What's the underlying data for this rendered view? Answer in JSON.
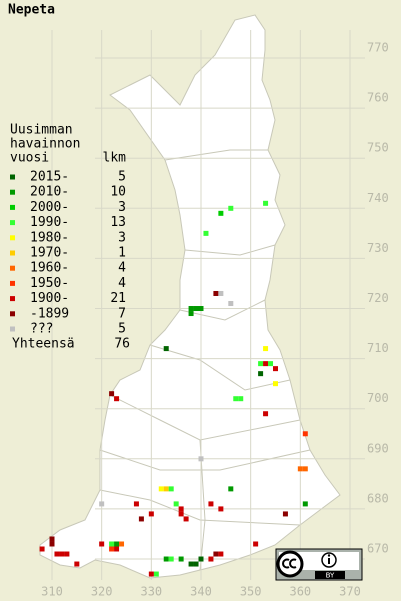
{
  "map": {
    "title": "Nepeta",
    "legend": {
      "heading_lines": [
        "Uusimman",
        "havainnon",
        "vuosi"
      ],
      "count_header": "lkm",
      "classes": [
        {
          "label": "2015-",
          "count": 5,
          "color": "#006400"
        },
        {
          "label": "2010-",
          "count": 10,
          "color": "#009900"
        },
        {
          "label": "2000-",
          "count": 3,
          "color": "#00cc00"
        },
        {
          "label": "1990-",
          "count": 13,
          "color": "#33ff33"
        },
        {
          "label": "1980-",
          "count": 3,
          "color": "#ffff00"
        },
        {
          "label": "1970-",
          "count": 1,
          "color": "#ffcc00"
        },
        {
          "label": "1960-",
          "count": 4,
          "color": "#ff6600"
        },
        {
          "label": "1950-",
          "count": 4,
          "color": "#ff3300"
        },
        {
          "label": "1900-",
          "count": 21,
          "color": "#cc0000"
        },
        {
          "label": "-1899",
          "count": 7,
          "color": "#8b0000"
        },
        {
          "label": "???",
          "count": 5,
          "color": "#c0c0c0"
        }
      ],
      "total_label": "Yhteensä",
      "total": 76
    },
    "yticks": [
      770,
      760,
      750,
      740,
      730,
      720,
      710,
      700,
      690,
      680,
      670
    ],
    "xticks": [
      310,
      320,
      330,
      340,
      350,
      360,
      370
    ],
    "xlim": [
      310,
      370
    ],
    "ylim": [
      670,
      770
    ],
    "points": [
      [
        344,
        737,
        2
      ],
      [
        346,
        738,
        3
      ],
      [
        353,
        739,
        3
      ],
      [
        341,
        733,
        3
      ],
      [
        343,
        721,
        9
      ],
      [
        344,
        721,
        10
      ],
      [
        346,
        719,
        10
      ],
      [
        338,
        718,
        1
      ],
      [
        339,
        718,
        1
      ],
      [
        340,
        718,
        1
      ],
      [
        338,
        717,
        1
      ],
      [
        333,
        710,
        0
      ],
      [
        353,
        710,
        4
      ],
      [
        352,
        707,
        3
      ],
      [
        353,
        707,
        8
      ],
      [
        354,
        707,
        3
      ],
      [
        352,
        705,
        0
      ],
      [
        355,
        706,
        8
      ],
      [
        355,
        703,
        4
      ],
      [
        347,
        700,
        3
      ],
      [
        348,
        700,
        3
      ],
      [
        353,
        697,
        8
      ],
      [
        361,
        693,
        7
      ],
      [
        360,
        686,
        6
      ],
      [
        361,
        686,
        6
      ],
      [
        322,
        701,
        9
      ],
      [
        323,
        700,
        8
      ],
      [
        340,
        688,
        10
      ],
      [
        332,
        682,
        4
      ],
      [
        333,
        682,
        5
      ],
      [
        334,
        682,
        3
      ],
      [
        346,
        682,
        1
      ],
      [
        320,
        679,
        10
      ],
      [
        327,
        679,
        8
      ],
      [
        335,
        679,
        3
      ],
      [
        336,
        678,
        8
      ],
      [
        336,
        677,
        8
      ],
      [
        337,
        676,
        8
      ],
      [
        342,
        679,
        8
      ],
      [
        344,
        678,
        8
      ],
      [
        361,
        679,
        1
      ],
      [
        330,
        677,
        8
      ],
      [
        328,
        676,
        9
      ],
      [
        357,
        677,
        9
      ],
      [
        320,
        671,
        8
      ],
      [
        322,
        671,
        3
      ],
      [
        323,
        671,
        1
      ],
      [
        324,
        671,
        6
      ],
      [
        322,
        670,
        7
      ],
      [
        323,
        670,
        8
      ],
      [
        351,
        671,
        8
      ],
      [
        308,
        670,
        8
      ],
      [
        310,
        672,
        9
      ],
      [
        310,
        671,
        9
      ],
      [
        311,
        669,
        8
      ],
      [
        312,
        669,
        8
      ],
      [
        313,
        669,
        8
      ],
      [
        315,
        667,
        8
      ],
      [
        333,
        668,
        1
      ],
      [
        334,
        668,
        3
      ],
      [
        336,
        668,
        1
      ],
      [
        338,
        667,
        0
      ],
      [
        339,
        667,
        0
      ],
      [
        340,
        668,
        0
      ],
      [
        342,
        668,
        8
      ],
      [
        343,
        669,
        9
      ],
      [
        344,
        669,
        8
      ],
      [
        331,
        665,
        3
      ],
      [
        330,
        665,
        8
      ]
    ],
    "license_badge": "BY"
  }
}
